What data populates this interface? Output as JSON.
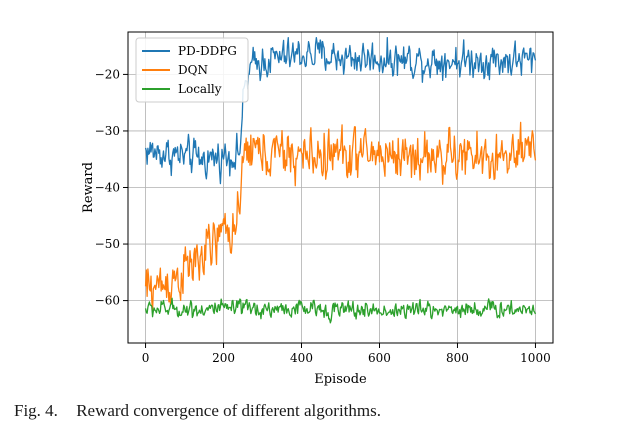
{
  "chart_data": {
    "type": "line",
    "xlabel": "Episode",
    "ylabel": "Reward",
    "xlim": [
      -45,
      1045
    ],
    "ylim": [
      -67.5,
      -12.5
    ],
    "xticks": [
      0,
      200,
      400,
      600,
      800,
      1000
    ],
    "yticks": [
      -60,
      -50,
      -40,
      -30,
      -20
    ],
    "grid": true,
    "legend": "top-left",
    "series": [
      {
        "name": "PD-DDPG",
        "color": "#1f77b4",
        "noise": 2.2,
        "x": [
          0,
          50,
          100,
          150,
          200,
          240,
          255,
          270,
          300,
          350,
          400,
          450,
          500,
          600,
          700,
          800,
          900,
          1000
        ],
        "y": [
          -33.5,
          -34,
          -34.5,
          -35,
          -34.5,
          -34,
          -22,
          -19,
          -17.5,
          -17,
          -16.5,
          -16.5,
          -17,
          -17.2,
          -17.5,
          -17.5,
          -17.5,
          -17.5
        ]
      },
      {
        "name": "DQN",
        "color": "#ff7f0e",
        "noise": 3.2,
        "x": [
          0,
          50,
          100,
          150,
          200,
          240,
          255,
          270,
          300,
          400,
          500,
          600,
          700,
          800,
          900,
          1000
        ],
        "y": [
          -58,
          -57,
          -55,
          -52,
          -48,
          -46,
          -33,
          -33,
          -34,
          -34.5,
          -34,
          -34,
          -34.5,
          -34.5,
          -35,
          -34
        ]
      },
      {
        "name": "Locally",
        "color": "#2ca02c",
        "noise": 1.1,
        "x": [
          0,
          200,
          400,
          600,
          800,
          1000
        ],
        "y": [
          -61.5,
          -61.5,
          -61.5,
          -61.8,
          -61.5,
          -61.5
        ]
      }
    ]
  },
  "caption": {
    "label": "Fig. 4.",
    "text": "Reward convergence of different algorithms."
  }
}
